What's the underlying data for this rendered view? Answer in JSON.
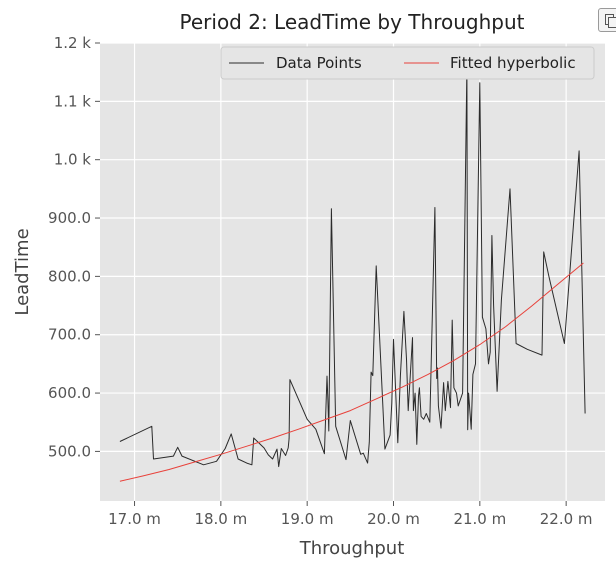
{
  "chart_data": {
    "type": "line",
    "title": "Period 2: LeadTime by Throughput",
    "xlabel": "Throughput",
    "ylabel": "LeadTime",
    "xlim": [
      16.6,
      22.45
    ],
    "ylim": [
      415,
      1200
    ],
    "x_ticks": [
      17.0,
      18.0,
      19.0,
      20.0,
      21.0,
      22.0
    ],
    "x_tick_labels": [
      "17.0 m",
      "18.0 m",
      "19.0 m",
      "20.0 m",
      "21.0 m",
      "22.0 m"
    ],
    "y_ticks": [
      500,
      600,
      700,
      800,
      900,
      1000,
      1100,
      1200
    ],
    "y_tick_labels": [
      "500.0",
      "600.0",
      "700.0",
      "800.0",
      "900.0",
      "1.0 k",
      "1.1 k",
      "1.2 k"
    ],
    "grid": true,
    "legend_position": "top-right",
    "series": [
      {
        "name": "Data Points",
        "color": "#2b2b2b",
        "x": [
          16.83,
          17.2,
          17.22,
          17.45,
          17.5,
          17.55,
          17.8,
          17.95,
          18.05,
          18.12,
          18.2,
          18.3,
          18.36,
          18.38,
          18.5,
          18.55,
          18.6,
          18.65,
          18.67,
          18.7,
          18.75,
          18.78,
          18.79,
          18.8,
          19.0,
          19.1,
          19.2,
          19.23,
          19.24,
          19.25,
          19.28,
          19.33,
          19.45,
          19.5,
          19.62,
          19.65,
          19.7,
          19.72,
          19.74,
          19.76,
          19.8,
          19.9,
          19.96,
          19.98,
          20.0,
          20.05,
          20.08,
          20.12,
          20.15,
          20.17,
          20.22,
          20.23,
          20.25,
          20.27,
          20.29,
          20.3,
          20.32,
          20.35,
          20.38,
          20.42,
          20.48,
          20.5,
          20.51,
          20.52,
          20.55,
          20.58,
          20.6,
          20.63,
          20.66,
          20.68,
          20.7,
          20.73,
          20.75,
          20.8,
          20.85,
          20.86,
          20.87,
          20.9,
          20.92,
          20.95,
          21.0,
          21.03,
          21.07,
          21.1,
          21.12,
          21.14,
          21.16,
          21.2,
          21.25,
          21.35,
          21.42,
          21.55,
          21.72,
          21.74,
          21.8,
          21.98,
          22.15,
          22.22
        ],
        "y": [
          517,
          543,
          487,
          492,
          507,
          492,
          477,
          483,
          505,
          530,
          487,
          480,
          477,
          523,
          506,
          494,
          487,
          504,
          474,
          505,
          493,
          506,
          522,
          623,
          555,
          538,
          496,
          629,
          588,
          535,
          916,
          543,
          486,
          553,
          495,
          497,
          480,
          516,
          636,
          630,
          818,
          504,
          528,
          583,
          692,
          515,
          630,
          740,
          658,
          570,
          695,
          570,
          600,
          512,
          595,
          609,
          560,
          555,
          565,
          550,
          918,
          625,
          643,
          578,
          540,
          618,
          570,
          620,
          575,
          725,
          609,
          600,
          578,
          600,
          1160,
          537,
          600,
          538,
          632,
          650,
          1132,
          730,
          710,
          650,
          670,
          870,
          750,
          603,
          760,
          950,
          685,
          675,
          665,
          842,
          800,
          685,
          1015,
          565
        ]
      },
      {
        "name": "Fitted hyperbolic",
        "color": "#e8413a",
        "x": [
          16.83,
          17.1,
          17.4,
          17.7,
          18.0,
          18.3,
          18.6,
          18.9,
          19.2,
          19.5,
          19.8,
          20.1,
          20.4,
          20.7,
          21.0,
          21.3,
          21.6,
          21.9,
          22.2
        ],
        "y": [
          449,
          458,
          469,
          482,
          495,
          509,
          523,
          538,
          554,
          570,
          590,
          610,
          632,
          656,
          683,
          714,
          749,
          786,
          823
        ]
      }
    ]
  }
}
